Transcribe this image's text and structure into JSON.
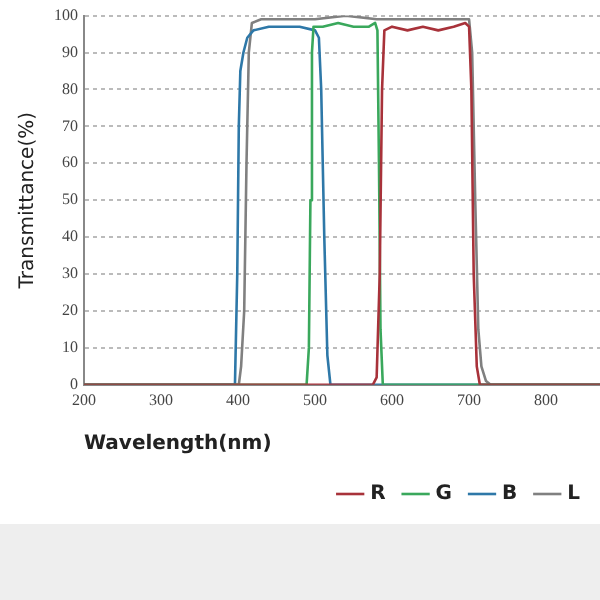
{
  "chart_data": {
    "type": "line",
    "xlabel": "Wavelength(nm)",
    "ylabel": "Transmittance(%)",
    "xlim": [
      200,
      870
    ],
    "xticks": [
      200,
      300,
      400,
      500,
      600,
      700,
      800
    ],
    "ylim": [
      0,
      100
    ],
    "yticks": [
      0,
      10,
      20,
      30,
      40,
      50,
      60,
      70,
      80,
      90,
      100
    ],
    "grid": "y",
    "legend": "bottom right",
    "marker": "none",
    "line_style": "solid",
    "series": [
      {
        "name": "R",
        "color": "#a8323a",
        "x": [
          200,
          575,
          580,
          584,
          587,
          590,
          600,
          620,
          640,
          660,
          680,
          695,
          700,
          703,
          706,
          710,
          714,
          870
        ],
        "values": [
          0,
          0,
          2,
          30,
          80,
          96,
          97,
          96,
          97,
          96,
          97,
          98,
          97,
          80,
          30,
          5,
          0,
          0
        ]
      },
      {
        "name": "G",
        "color": "#3aa85c",
        "x": [
          200,
          489,
          492,
          494,
          496,
          498,
          510,
          530,
          550,
          570,
          578,
          581,
          583,
          585,
          588,
          870
        ],
        "values": [
          0,
          0,
          10,
          50,
          90,
          97,
          97,
          98,
          97,
          97,
          98,
          96,
          60,
          15,
          0,
          0
        ]
      },
      {
        "name": "B",
        "color": "#2e78a8",
        "x": [
          200,
          396,
          399,
          401,
          403,
          407,
          412,
          420,
          440,
          460,
          480,
          500,
          505,
          508,
          512,
          516,
          520,
          870
        ],
        "values": [
          0,
          0,
          30,
          70,
          85,
          90,
          94,
          96,
          97,
          97,
          97,
          96,
          94,
          80,
          40,
          8,
          0,
          0
        ]
      },
      {
        "name": "L",
        "color": "#808080",
        "x": [
          200,
          401,
          404,
          408,
          411,
          414,
          418,
          430,
          460,
          500,
          540,
          580,
          620,
          660,
          700,
          704,
          708,
          712,
          716,
          722,
          728,
          870
        ],
        "values": [
          0,
          0,
          5,
          20,
          60,
          90,
          98,
          99,
          99,
          99,
          100,
          99,
          99,
          99,
          99,
          90,
          50,
          15,
          5,
          1,
          0,
          0
        ]
      }
    ]
  }
}
